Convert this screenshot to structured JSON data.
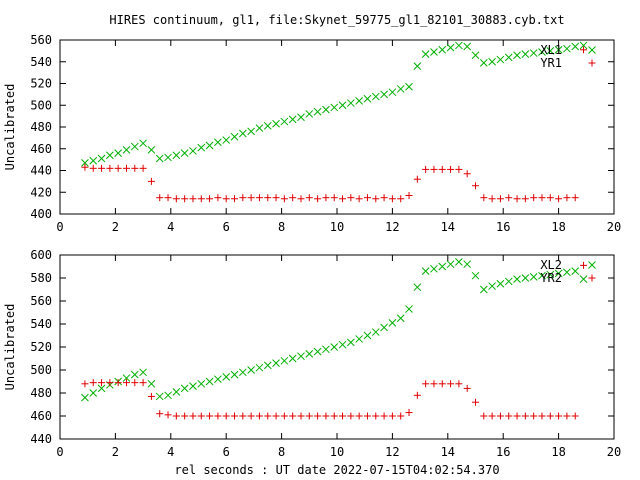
{
  "title": "HIRES continuum, gl1, file:Skynet_59775_gl1_82101_30883.cyb.txt",
  "xlabel": "rel seconds : UT date 2022-07-15T04:02:54.370",
  "colors": {
    "red": "#e00000",
    "green": "#00b000"
  },
  "chart_data": [
    {
      "type": "scatter",
      "ylabel": "Uncalibrated",
      "xlim": [
        0,
        20
      ],
      "ylim": [
        400,
        560
      ],
      "xticks": [
        0,
        2,
        4,
        6,
        8,
        10,
        12,
        14,
        16,
        18,
        20
      ],
      "yticks": [
        400,
        420,
        440,
        460,
        480,
        500,
        520,
        540,
        560
      ],
      "legend_position": "top-right",
      "grid": false,
      "series": [
        {
          "name": "XL1",
          "marker": "x",
          "color": "#00b000",
          "x": [
            0.9,
            1.2,
            1.5,
            1.8,
            2.1,
            2.4,
            2.7,
            3.0,
            3.3,
            3.6,
            3.9,
            4.2,
            4.5,
            4.8,
            5.1,
            5.4,
            5.7,
            6.0,
            6.3,
            6.6,
            6.9,
            7.2,
            7.5,
            7.8,
            8.1,
            8.4,
            8.7,
            9.0,
            9.3,
            9.6,
            9.9,
            10.2,
            10.5,
            10.8,
            11.1,
            11.4,
            11.7,
            12.0,
            12.3,
            12.6,
            12.9,
            13.2,
            13.5,
            13.8,
            14.1,
            14.4,
            14.7,
            15.0,
            15.3,
            15.6,
            15.9,
            16.2,
            16.5,
            16.8,
            17.1,
            17.4,
            17.7,
            18.0,
            18.3,
            18.6,
            18.9
          ],
          "y": [
            447,
            449,
            451,
            454,
            456,
            459,
            462,
            465,
            459,
            451,
            452,
            454,
            456,
            458,
            461,
            463,
            466,
            468,
            471,
            474,
            476,
            479,
            481,
            483,
            485,
            487,
            489,
            492,
            494,
            496,
            498,
            500,
            502,
            504,
            506,
            508,
            510,
            512,
            515,
            517,
            536,
            547,
            549,
            551,
            553,
            555,
            554,
            546,
            539,
            540,
            542,
            544,
            546,
            547,
            548,
            549,
            550,
            551,
            552,
            554,
            555
          ]
        },
        {
          "name": "YR1",
          "marker": "+",
          "color": "#e00000",
          "x": [
            0.9,
            1.2,
            1.5,
            1.8,
            2.1,
            2.4,
            2.7,
            3.0,
            3.3,
            3.6,
            3.9,
            4.2,
            4.5,
            4.8,
            5.1,
            5.4,
            5.7,
            6.0,
            6.3,
            6.6,
            6.9,
            7.2,
            7.5,
            7.8,
            8.1,
            8.4,
            8.7,
            9.0,
            9.3,
            9.6,
            9.9,
            10.2,
            10.5,
            10.8,
            11.1,
            11.4,
            11.7,
            12.0,
            12.3,
            12.6,
            12.9,
            13.2,
            13.5,
            13.8,
            14.1,
            14.4,
            14.7,
            15.0,
            15.3,
            15.6,
            15.9,
            16.2,
            16.5,
            16.8,
            17.1,
            17.4,
            17.7,
            18.0,
            18.3,
            18.6,
            18.9
          ],
          "y": [
            443,
            442,
            442,
            442,
            442,
            442,
            442,
            442,
            430,
            415,
            415,
            414,
            414,
            414,
            414,
            414,
            415,
            414,
            414,
            415,
            415,
            415,
            415,
            415,
            414,
            415,
            414,
            415,
            414,
            415,
            415,
            414,
            415,
            414,
            415,
            414,
            415,
            414,
            414,
            417,
            432,
            441,
            441,
            441,
            441,
            441,
            437,
            426,
            415,
            414,
            414,
            415,
            414,
            414,
            415,
            415,
            415,
            414,
            415,
            415,
            551
          ]
        }
      ]
    },
    {
      "type": "scatter",
      "ylabel": "Uncalibrated",
      "xlim": [
        0,
        20
      ],
      "ylim": [
        440,
        600
      ],
      "xticks": [
        0,
        2,
        4,
        6,
        8,
        10,
        12,
        14,
        16,
        18,
        20
      ],
      "yticks": [
        440,
        460,
        480,
        500,
        520,
        540,
        560,
        580,
        600
      ],
      "legend_position": "top-right",
      "grid": false,
      "series": [
        {
          "name": "XL2",
          "marker": "x",
          "color": "#00b000",
          "x": [
            0.9,
            1.2,
            1.5,
            1.8,
            2.1,
            2.4,
            2.7,
            3.0,
            3.3,
            3.6,
            3.9,
            4.2,
            4.5,
            4.8,
            5.1,
            5.4,
            5.7,
            6.0,
            6.3,
            6.6,
            6.9,
            7.2,
            7.5,
            7.8,
            8.1,
            8.4,
            8.7,
            9.0,
            9.3,
            9.6,
            9.9,
            10.2,
            10.5,
            10.8,
            11.1,
            11.4,
            11.7,
            12.0,
            12.3,
            12.6,
            12.9,
            13.2,
            13.5,
            13.8,
            14.1,
            14.4,
            14.7,
            15.0,
            15.3,
            15.6,
            15.9,
            16.2,
            16.5,
            16.8,
            17.1,
            17.4,
            17.7,
            18.0,
            18.3,
            18.6,
            18.9
          ],
          "y": [
            476,
            480,
            484,
            487,
            490,
            493,
            496,
            498,
            488,
            477,
            478,
            481,
            484,
            486,
            488,
            490,
            492,
            494,
            496,
            498,
            500,
            502,
            504,
            506,
            508,
            510,
            512,
            514,
            516,
            518,
            520,
            522,
            524,
            527,
            530,
            533,
            537,
            541,
            545,
            553,
            572,
            586,
            588,
            590,
            592,
            594,
            592,
            582,
            570,
            573,
            575,
            577,
            579,
            580,
            581,
            582,
            583,
            584,
            585,
            586,
            579
          ]
        },
        {
          "name": "YR2",
          "marker": "+",
          "color": "#e00000",
          "x": [
            0.9,
            1.2,
            1.5,
            1.8,
            2.1,
            2.4,
            2.7,
            3.0,
            3.3,
            3.6,
            3.9,
            4.2,
            4.5,
            4.8,
            5.1,
            5.4,
            5.7,
            6.0,
            6.3,
            6.6,
            6.9,
            7.2,
            7.5,
            7.8,
            8.1,
            8.4,
            8.7,
            9.0,
            9.3,
            9.6,
            9.9,
            10.2,
            10.5,
            10.8,
            11.1,
            11.4,
            11.7,
            12.0,
            12.3,
            12.6,
            12.9,
            13.2,
            13.5,
            13.8,
            14.1,
            14.4,
            14.7,
            15.0,
            15.3,
            15.6,
            15.9,
            16.2,
            16.5,
            16.8,
            17.1,
            17.4,
            17.7,
            18.0,
            18.3,
            18.6,
            18.9
          ],
          "y": [
            488,
            489,
            489,
            489,
            489,
            489,
            489,
            489,
            477,
            462,
            461,
            460,
            460,
            460,
            460,
            460,
            460,
            460,
            460,
            460,
            460,
            460,
            460,
            460,
            460,
            460,
            460,
            460,
            460,
            460,
            460,
            460,
            460,
            460,
            460,
            460,
            460,
            460,
            460,
            463,
            478,
            488,
            488,
            488,
            488,
            488,
            484,
            472,
            460,
            460,
            460,
            460,
            460,
            460,
            460,
            460,
            460,
            460,
            460,
            460,
            591
          ]
        }
      ]
    }
  ]
}
